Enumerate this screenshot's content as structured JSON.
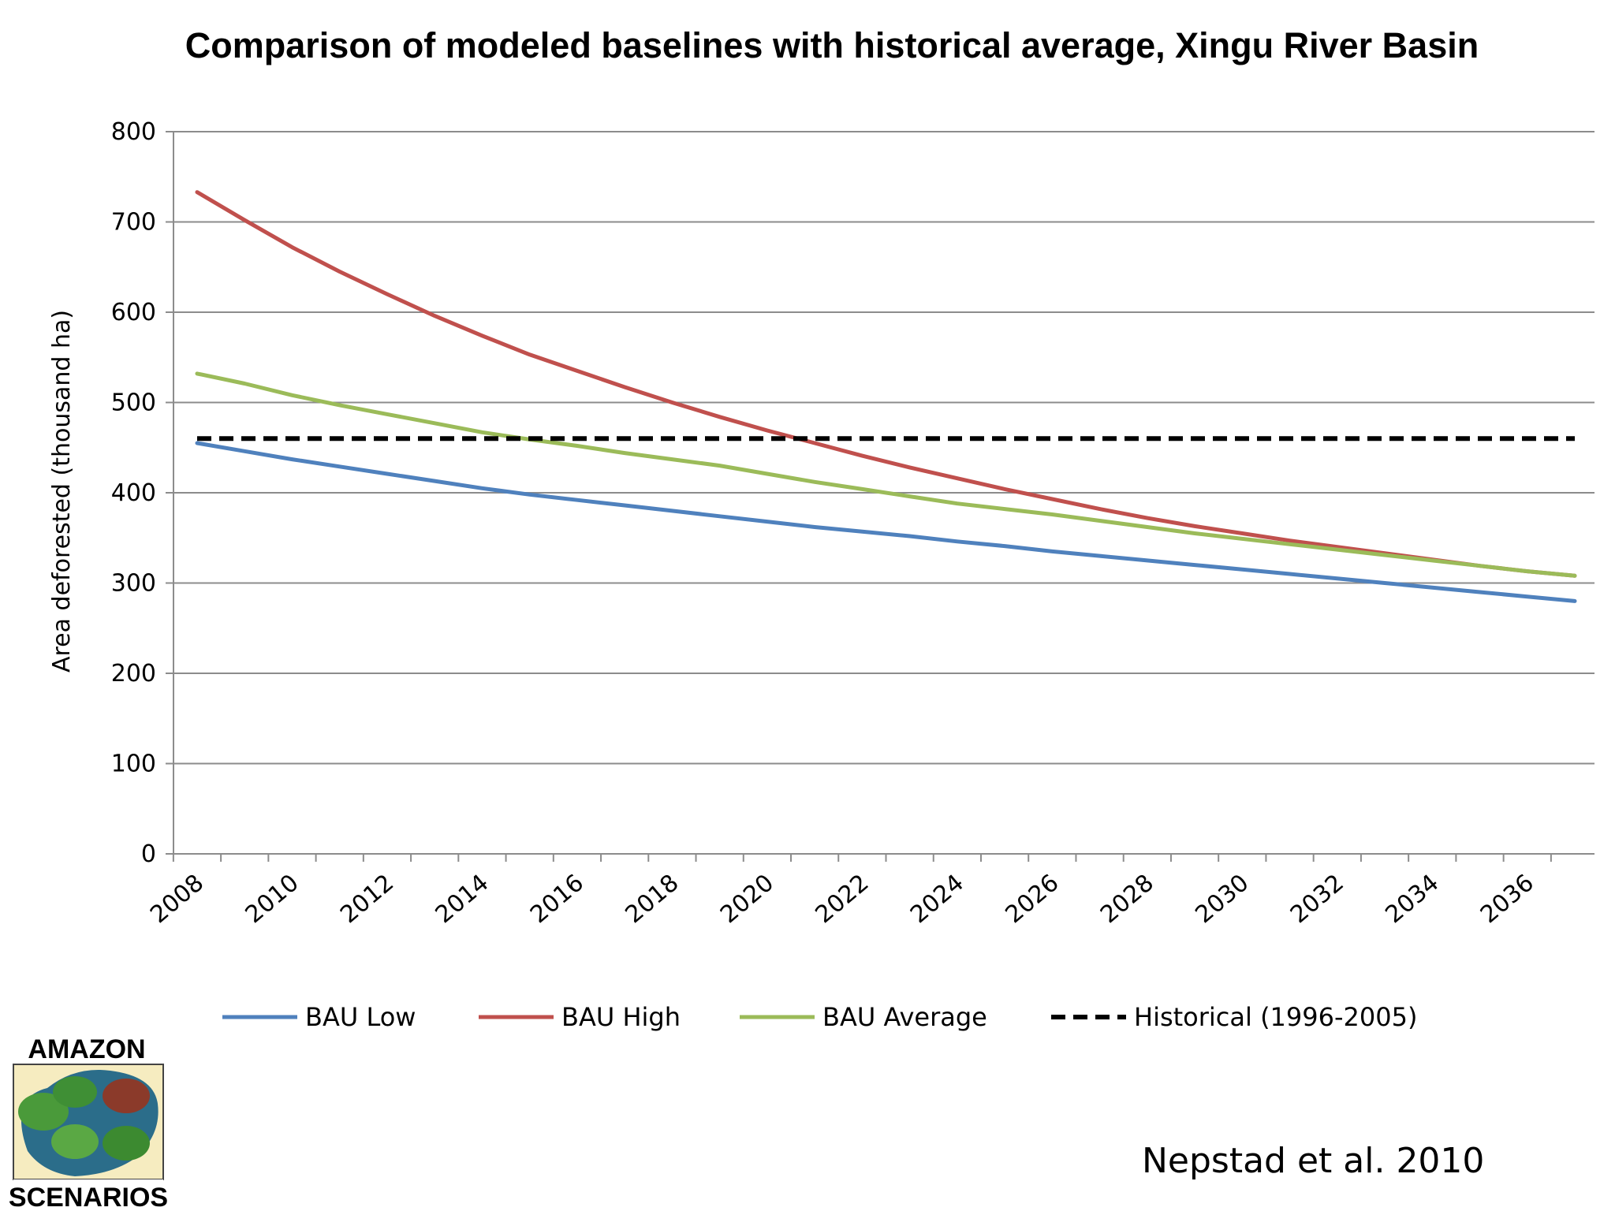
{
  "chart_data": {
    "type": "line",
    "title": "Comparison of modeled baselines with historical average, Xingu River Basin",
    "xlabel": "",
    "ylabel": "Area deforested (thousand ha)",
    "ylim": [
      0,
      800
    ],
    "yticks": [
      0,
      100,
      200,
      300,
      400,
      500,
      600,
      700,
      800
    ],
    "xticks": [
      "2008",
      "2010",
      "2012",
      "2014",
      "2016",
      "2018",
      "2020",
      "2022",
      "2024",
      "2026",
      "2028",
      "2030",
      "2032",
      "2034",
      "2036"
    ],
    "x": [
      2008,
      2009,
      2010,
      2011,
      2012,
      2013,
      2014,
      2015,
      2016,
      2017,
      2018,
      2019,
      2020,
      2021,
      2022,
      2023,
      2024,
      2025,
      2026,
      2027,
      2028,
      2029,
      2030,
      2031,
      2032,
      2033,
      2034,
      2035,
      2036,
      2037
    ],
    "grid": "horizontal",
    "legend_position": "bottom",
    "series": [
      {
        "name": "BAU Low",
        "color": "#4f81bd",
        "style": "solid",
        "values": [
          455,
          446,
          437,
          429,
          421,
          413,
          405,
          398,
          392,
          386,
          380,
          374,
          368,
          362,
          357,
          352,
          346,
          341,
          335,
          330,
          325,
          320,
          315,
          310,
          305,
          300,
          295,
          290,
          285,
          280
        ]
      },
      {
        "name": "BAU High",
        "color": "#c0504d",
        "style": "solid",
        "values": [
          733,
          702,
          672,
          645,
          620,
          596,
          574,
          553,
          535,
          517,
          500,
          484,
          469,
          455,
          441,
          428,
          416,
          404,
          393,
          382,
          372,
          363,
          355,
          347,
          340,
          333,
          326,
          319,
          313,
          308
        ]
      },
      {
        "name": "BAU Average",
        "color": "#9bbb59",
        "style": "solid",
        "values": [
          532,
          521,
          508,
          497,
          487,
          477,
          467,
          459,
          452,
          444,
          437,
          430,
          421,
          412,
          404,
          396,
          388,
          382,
          376,
          369,
          362,
          355,
          349,
          343,
          337,
          331,
          325,
          319,
          313,
          308
        ]
      },
      {
        "name": "Historical (1996-2005)",
        "color": "#000000",
        "style": "dashed",
        "values": [
          460,
          460,
          460,
          460,
          460,
          460,
          460,
          460,
          460,
          460,
          460,
          460,
          460,
          460,
          460,
          460,
          460,
          460,
          460,
          460,
          460,
          460,
          460,
          460,
          460,
          460,
          460,
          460,
          460,
          460
        ]
      }
    ]
  },
  "citation": "Nepstad et al. 2010",
  "logo": {
    "top_text": "AMAZON",
    "bottom_text": "SCENARIOS"
  }
}
